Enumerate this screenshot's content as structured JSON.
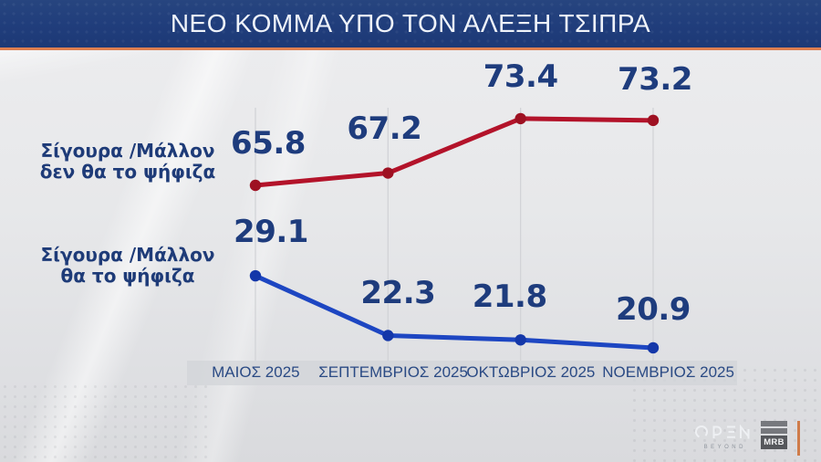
{
  "header": {
    "title": "ΝΕΟ ΚΟΜΜΑ ΥΠΟ ΤΟΝ ΑΛΕΞΗ ΤΣΙΠΡΑ"
  },
  "chart_data": {
    "type": "line",
    "title": "ΝΕΟ ΚΟΜΜΑ ΥΠΟ ΤΟΝ ΑΛΕΞΗ ΤΣΙΠΡΑ",
    "categories": [
      "ΜΑΙΟΣ 2025",
      "ΣΕΠΤΕΜΒΡΙΟΣ 2025",
      "ΟΚΤΩΒΡΙΟΣ 2025",
      "ΝΟΕΜΒΡΙΟΣ 2025"
    ],
    "series": [
      {
        "name": "Σίγουρα /Μάλλον δεν θα το ψήφιζα",
        "label_lines": [
          "Σίγουρα /Μάλλον",
          "δεν θα το ψήφιζα"
        ],
        "values": [
          65.8,
          67.2,
          73.4,
          73.2
        ],
        "color": "#b3132a",
        "marker_color": "#9e1122"
      },
      {
        "name": "Σίγουρα /Μάλλον θα το ψήφιζα",
        "label_lines": [
          "Σίγουρα /Μάλλον",
          "θα το ψήφιζα"
        ],
        "values": [
          29.1,
          22.3,
          21.8,
          20.9
        ],
        "color": "#1d46c2",
        "marker_color": "#1437a9"
      }
    ],
    "value_label_color": "#1e3c7d",
    "grid": "vertical-only",
    "gridline_color": "#d2d3d7",
    "legend_position": "left-of-lines"
  },
  "footer": {
    "open_label": "OPEN",
    "open_sub": "BEYOND",
    "mrb_label": "MRB"
  },
  "colors": {
    "header_bg": "#20407d",
    "header_accent": "#dd7e4f",
    "background": "#e7e8ea",
    "navy_text": "#1e3b78"
  }
}
